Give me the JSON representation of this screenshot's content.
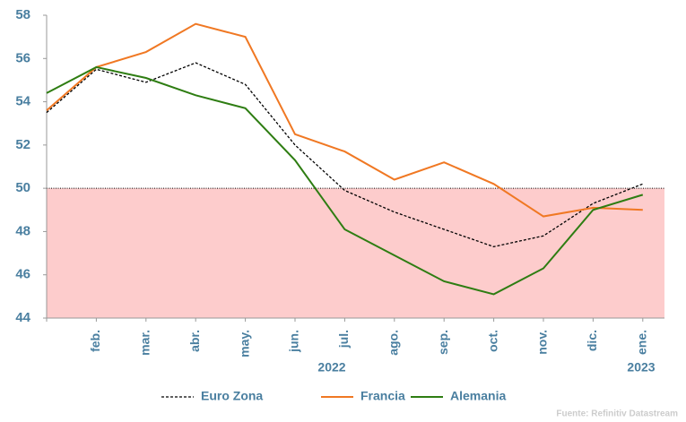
{
  "chart_data": {
    "type": "line",
    "categories": [
      null,
      "feb.",
      "mar.",
      "abr.",
      "may.",
      "jun.",
      "jul.",
      "ago.",
      "sep.",
      "oct.",
      "nov.",
      "dic.",
      "ene."
    ],
    "year_labels": [
      "2022",
      "2023"
    ],
    "series": [
      {
        "name": "Euro Zona",
        "color": "#000000",
        "dash": true,
        "values": [
          53.5,
          55.5,
          54.9,
          55.8,
          54.8,
          52.0,
          49.9,
          48.9,
          48.1,
          47.3,
          47.8,
          49.3,
          50.2
        ]
      },
      {
        "name": "Francia",
        "color": "#f07823",
        "dash": false,
        "values": [
          53.6,
          55.6,
          56.3,
          57.6,
          57.0,
          52.5,
          51.7,
          50.4,
          51.2,
          50.2,
          48.7,
          49.1,
          49.0
        ]
      },
      {
        "name": "Alemania",
        "color": "#2e7d12",
        "dash": false,
        "values": [
          54.4,
          55.6,
          55.1,
          54.3,
          53.7,
          51.3,
          48.1,
          46.9,
          45.7,
          45.1,
          46.3,
          49.0,
          49.7
        ]
      }
    ],
    "threshold": 50,
    "threshold_fill": "#fdcccc",
    "ylim": [
      44,
      58
    ],
    "yticks": [
      44,
      46,
      48,
      50,
      52,
      54,
      56,
      58
    ],
    "source": "Fuente: Refinitiv Datastream"
  }
}
